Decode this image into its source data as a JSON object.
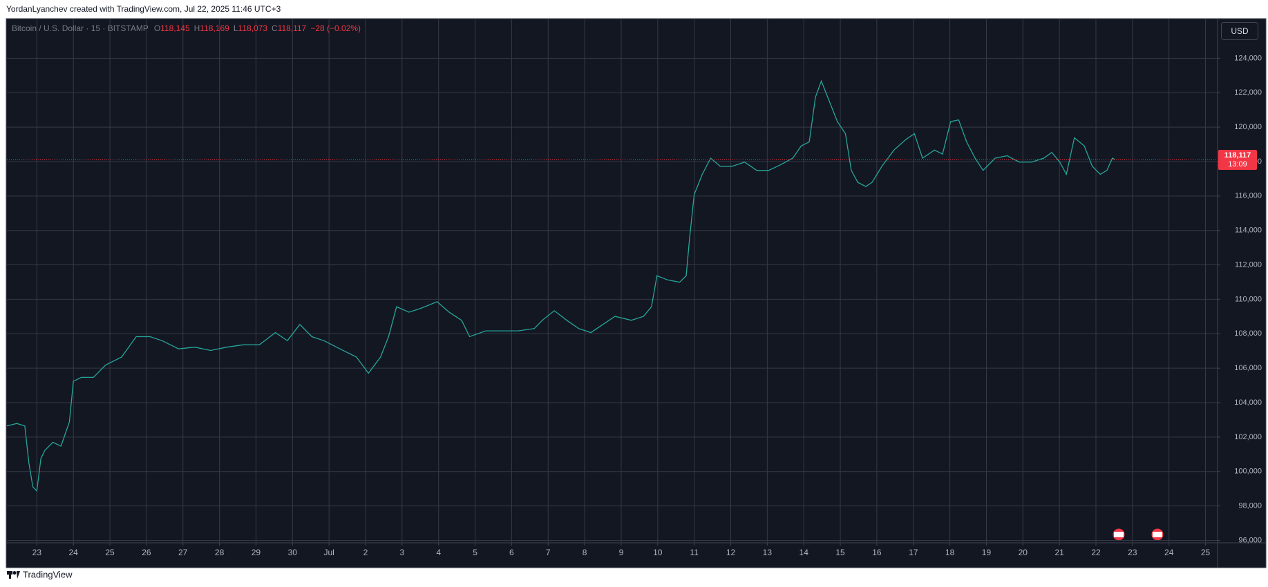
{
  "header": "YordanLyanchev created with TradingView.com, Jul 22, 2025 11:46 UTC+3",
  "footer": "TradingView",
  "currency": "USD",
  "legend": {
    "symbol": "Bitcoin / U.S. Dollar · 15 · BITSTAMP",
    "ohlc": [
      {
        "label": "O",
        "value": "118,145"
      },
      {
        "label": "H",
        "value": "118,169"
      },
      {
        "label": "L",
        "value": "118,073"
      },
      {
        "label": "C",
        "value": "118,117"
      }
    ],
    "change": "−28 (−0.02%)"
  },
  "chart_data": {
    "type": "line",
    "color": "#26a69a",
    "grid": true,
    "x": [
      -0.82,
      -0.55,
      -0.33,
      -0.22,
      -0.11,
      0,
      0.11,
      0.22,
      0.44,
      0.66,
      0.89,
      1.0,
      1.22,
      1.55,
      1.88,
      2.32,
      2.72,
      3.1,
      3.43,
      3.88,
      4.32,
      4.76,
      5.2,
      5.65,
      6.09,
      6.53,
      6.86,
      7.2,
      7.53,
      7.86,
      8.3,
      8.75,
      9.08,
      9.41,
      9.63,
      9.85,
      10.19,
      10.52,
      10.96,
      11.29,
      11.63,
      11.85,
      12.29,
      12.73,
      13.18,
      13.62,
      13.84,
      14.17,
      14.51,
      14.84,
      15.17,
      15.5,
      15.83,
      16.28,
      16.61,
      16.83,
      16.98,
      17.27,
      17.6,
      17.78,
      17.87,
      18.0,
      18.22,
      18.45,
      18.71,
      19.04,
      19.38,
      19.71,
      20.04,
      20.37,
      20.7,
      20.93,
      21.15,
      21.32,
      21.48,
      21.7,
      21.92,
      22.14,
      22.3,
      22.48,
      22.7,
      22.87,
      23.14,
      23.47,
      23.8,
      24.03,
      24.25,
      24.58,
      24.8,
      25.02,
      25.24,
      25.46,
      25.69,
      25.91,
      26.24,
      26.57,
      26.9,
      27.24,
      27.57,
      27.79,
      28.01,
      28.19,
      28.41,
      28.68,
      28.9,
      29.12,
      29.3,
      29.45,
      29.52
    ],
    "values": [
      102650,
      102790,
      102650,
      100520,
      99110,
      98870,
      100760,
      101230,
      101700,
      101470,
      102880,
      105240,
      105470,
      105470,
      106180,
      106650,
      107830,
      107830,
      107600,
      107120,
      107220,
      107030,
      107220,
      107360,
      107360,
      108070,
      107600,
      108540,
      107830,
      107600,
      107120,
      106650,
      105710,
      106650,
      107830,
      109570,
      109250,
      109480,
      109860,
      109250,
      108780,
      107830,
      108170,
      108170,
      108170,
      108300,
      108780,
      109340,
      108780,
      108300,
      108070,
      108540,
      109010,
      108780,
      109010,
      109570,
      111370,
      111130,
      110990,
      111370,
      113490,
      116080,
      117260,
      118200,
      117730,
      117730,
      117970,
      117490,
      117490,
      117820,
      118200,
      118910,
      119140,
      121740,
      122680,
      121500,
      120320,
      119620,
      117490,
      116790,
      116550,
      116790,
      117730,
      118670,
      119290,
      119620,
      118200,
      118670,
      118430,
      120320,
      120420,
      119140,
      118200,
      117490,
      118200,
      118340,
      117970,
      117970,
      118200,
      118530,
      117970,
      117260,
      119380,
      118910,
      117730,
      117260,
      117490,
      118200,
      118117
    ],
    "xlim": [
      -0.82,
      32.33
    ],
    "xticks": [
      {
        "value": 0,
        "label": "23"
      },
      {
        "value": 1,
        "label": "24"
      },
      {
        "value": 2,
        "label": "25"
      },
      {
        "value": 3,
        "label": "26"
      },
      {
        "value": 4,
        "label": "27"
      },
      {
        "value": 5,
        "label": "28"
      },
      {
        "value": 6,
        "label": "29"
      },
      {
        "value": 7,
        "label": "30"
      },
      {
        "value": 8,
        "label": "Jul"
      },
      {
        "value": 9,
        "label": "2"
      },
      {
        "value": 10,
        "label": "3"
      },
      {
        "value": 11,
        "label": "4"
      },
      {
        "value": 12,
        "label": "5"
      },
      {
        "value": 13,
        "label": "6"
      },
      {
        "value": 14,
        "label": "7"
      },
      {
        "value": 15,
        "label": "8"
      },
      {
        "value": 16,
        "label": "9"
      },
      {
        "value": 17,
        "label": "10"
      },
      {
        "value": 18,
        "label": "11"
      },
      {
        "value": 19,
        "label": "12"
      },
      {
        "value": 20,
        "label": "13"
      },
      {
        "value": 21,
        "label": "14"
      },
      {
        "value": 22,
        "label": "15"
      },
      {
        "value": 23,
        "label": "16"
      },
      {
        "value": 24,
        "label": "17"
      },
      {
        "value": 25,
        "label": "18"
      },
      {
        "value": 26,
        "label": "19"
      },
      {
        "value": 27,
        "label": "20"
      },
      {
        "value": 28,
        "label": "21"
      },
      {
        "value": 29,
        "label": "22"
      },
      {
        "value": 30,
        "label": "23"
      },
      {
        "value": 31,
        "label": "24"
      },
      {
        "value": 32,
        "label": "25"
      }
    ],
    "ylim": [
      95900,
      126260
    ],
    "yticks": [
      {
        "value": 96000,
        "label": "96,000"
      },
      {
        "value": 98000,
        "label": "98,000"
      },
      {
        "value": 100000,
        "label": "100,000"
      },
      {
        "value": 102000,
        "label": "102,000"
      },
      {
        "value": 104000,
        "label": "104,000"
      },
      {
        "value": 106000,
        "label": "106,000"
      },
      {
        "value": 108000,
        "label": "108,000"
      },
      {
        "value": 110000,
        "label": "110,000"
      },
      {
        "value": 112000,
        "label": "112,000"
      },
      {
        "value": 114000,
        "label": "114,000"
      },
      {
        "value": 116000,
        "label": "116,000"
      },
      {
        "value": 118000,
        "label": "118,000"
      },
      {
        "value": 120000,
        "label": "120,000"
      },
      {
        "value": 122000,
        "label": "122,000"
      },
      {
        "value": 124000,
        "label": "124,000"
      }
    ],
    "last_price": {
      "value": 118117,
      "label": "118,117",
      "countdown": "13:09",
      "color": "#f23645"
    }
  }
}
